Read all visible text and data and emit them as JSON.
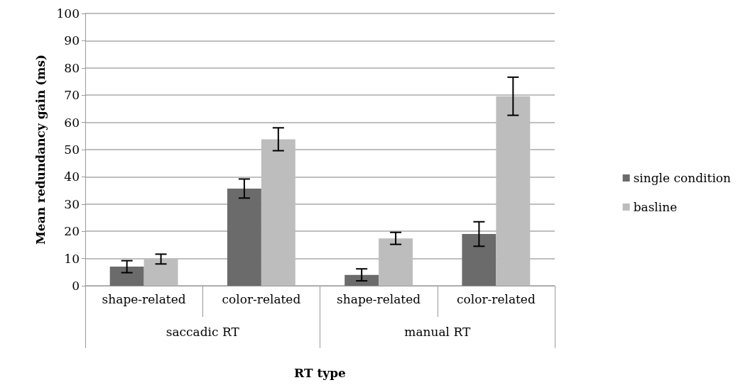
{
  "chart_data": {
    "type": "bar",
    "xlabel": "RT type",
    "ylabel": "Mean redundancy gain (ms)",
    "categories": [
      "shape-related",
      "color-related",
      "shape-related",
      "color-related"
    ],
    "annotations": [
      "saccadic RT",
      "manual RT"
    ],
    "series": [
      {
        "name": "single condition",
        "color": "#6b6b6b",
        "values": [
          7,
          35.7,
          4,
          19
        ],
        "errors": [
          2.2,
          3.5,
          2.2,
          4.5
        ]
      },
      {
        "name": "basline",
        "color": "#bdbdbd",
        "values": [
          9.8,
          53.8,
          17.4,
          69.6
        ],
        "errors": [
          1.8,
          4.2,
          2.2,
          7
        ]
      }
    ],
    "ylim": [
      0,
      100
    ],
    "yticks": [
      0,
      10,
      20,
      30,
      40,
      50,
      60,
      70,
      80,
      90,
      100
    ],
    "grid": "y",
    "legend": "right"
  }
}
